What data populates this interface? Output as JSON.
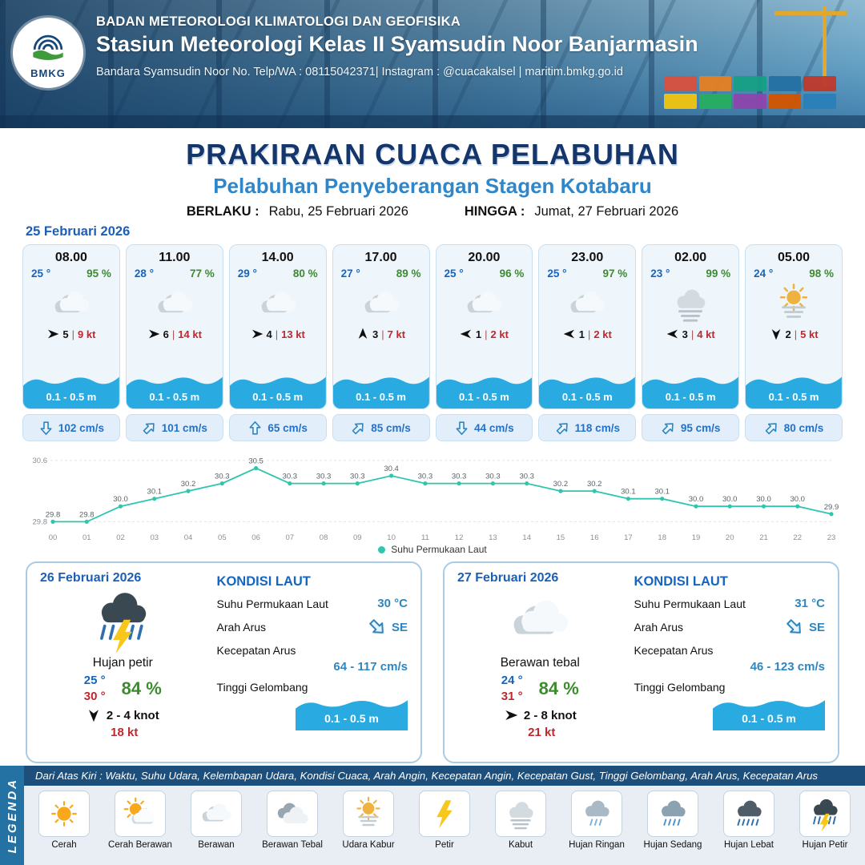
{
  "header": {
    "logo_text": "BMKG",
    "org": "BADAN METEOROLOGI KLIMATOLOGI DAN GEOFISIKA",
    "station": "Stasiun Meteorologi Kelas II Syamsudin Noor Banjarmasin",
    "contact": "Bandara Syamsudin Noor No. Telp/WA : 08115042371| Instagram : @cuacakalsel | maritim.bmkg.go.id"
  },
  "title": {
    "main": "PRAKIRAAN CUACA PELABUHAN",
    "subtitle": "Pelabuhan Penyeberangan Stagen Kotabaru",
    "berlaku_label": "BERLAKU :",
    "berlaku_value": "Rabu, 25 Februari 2026",
    "hingga_label": "HINGGA :",
    "hingga_value": "Jumat, 27 Februari 2026"
  },
  "colors": {
    "temp_blue": "#1565c0",
    "humidity_green": "#3d8b2f",
    "gust_red": "#c1272d",
    "wave_blue": "#29abe2",
    "title_navy": "#14366b",
    "subtitle_blue": "#2f86c8"
  },
  "forecast": {
    "date": "25 Februari 2026",
    "cards": [
      {
        "time": "08.00",
        "temp": "25 °",
        "humidity": "95 %",
        "weather_icon": "berawan",
        "wind_direction": "E",
        "wind_speed": "5",
        "wind_gust": "9 kt",
        "wave_height": "0.1 - 0.5 m",
        "current_direction": "S",
        "current_speed": "102 cm/s"
      },
      {
        "time": "11.00",
        "temp": "28 °",
        "humidity": "77 %",
        "weather_icon": "berawan",
        "wind_direction": "E",
        "wind_speed": "6",
        "wind_gust": "14 kt",
        "wave_height": "0.1 - 0.5 m",
        "current_direction": "NE",
        "current_speed": "101 cm/s"
      },
      {
        "time": "14.00",
        "temp": "29 °",
        "humidity": "80 %",
        "weather_icon": "berawan",
        "wind_direction": "E",
        "wind_speed": "4",
        "wind_gust": "13 kt",
        "wave_height": "0.1 - 0.5 m",
        "current_direction": "N",
        "current_speed": "65 cm/s"
      },
      {
        "time": "17.00",
        "temp": "27 °",
        "humidity": "89 %",
        "weather_icon": "berawan",
        "wind_direction": "N",
        "wind_speed": "3",
        "wind_gust": "7 kt",
        "wave_height": "0.1 - 0.5 m",
        "current_direction": "NE",
        "current_speed": "85 cm/s"
      },
      {
        "time": "20.00",
        "temp": "25 °",
        "humidity": "96 %",
        "weather_icon": "berawan",
        "wind_direction": "W",
        "wind_speed": "1",
        "wind_gust": "2 kt",
        "wave_height": "0.1 - 0.5 m",
        "current_direction": "S",
        "current_speed": "44 cm/s"
      },
      {
        "time": "23.00",
        "temp": "25 °",
        "humidity": "97 %",
        "weather_icon": "berawan",
        "wind_direction": "W",
        "wind_speed": "1",
        "wind_gust": "2 kt",
        "wave_height": "0.1 - 0.5 m",
        "current_direction": "NE",
        "current_speed": "118 cm/s"
      },
      {
        "time": "02.00",
        "temp": "23 °",
        "humidity": "99 %",
        "weather_icon": "kabut",
        "wind_direction": "W",
        "wind_speed": "3",
        "wind_gust": "4 kt",
        "wave_height": "0.1 - 0.5 m",
        "current_direction": "NE",
        "current_speed": "95 cm/s"
      },
      {
        "time": "05.00",
        "temp": "24 °",
        "humidity": "98 %",
        "weather_icon": "udara_kabur",
        "wind_direction": "S",
        "wind_speed": "2",
        "wind_gust": "5 kt",
        "wave_height": "0.1 - 0.5 m",
        "current_direction": "NE",
        "current_speed": "80 cm/s"
      }
    ]
  },
  "chart_data": {
    "type": "line",
    "series_name": "Suhu Permukaan Laut",
    "x": [
      "00",
      "01",
      "02",
      "03",
      "04",
      "05",
      "06",
      "07",
      "08",
      "09",
      "10",
      "11",
      "12",
      "13",
      "14",
      "15",
      "16",
      "17",
      "18",
      "19",
      "20",
      "21",
      "22",
      "23"
    ],
    "values": [
      29.8,
      29.8,
      30.0,
      30.1,
      30.2,
      30.3,
      30.5,
      30.3,
      30.3,
      30.3,
      30.4,
      30.3,
      30.3,
      30.3,
      30.3,
      30.2,
      30.2,
      30.1,
      30.1,
      30.0,
      30.0,
      30.0,
      30.0,
      29.9
    ],
    "ylim": [
      29.8,
      30.6
    ],
    "line_color": "#2fc5ae",
    "legend_position": "bottom",
    "grid": "dotted-top-bottom"
  },
  "day_cards": [
    {
      "date": "26 Februari 2026",
      "weather_icon": "hujan_petir",
      "weather_label": "Hujan petir",
      "temp_min": "25 °",
      "temp_max": "30 °",
      "humidity": "84 %",
      "wind_direction": "S",
      "wind_range": "2  - 4 knot",
      "wind_gust": "18 kt",
      "sea": {
        "title": "KONDISI LAUT",
        "sst_label": "Suhu Permukaan Laut",
        "sst_value": "30 °C",
        "current_dir_label": "Arah Arus",
        "current_dir_value": "SE",
        "current_dir": "SE",
        "current_speed_label": "Kecepatan Arus",
        "current_speed_value": "64  - 117 cm/s",
        "wave_label": "Tinggi Gelombang",
        "wave_value": "0.1 - 0.5 m"
      }
    },
    {
      "date": "27 Februari 2026",
      "weather_icon": "berawan",
      "weather_label": "Berawan tebal",
      "temp_min": "24 °",
      "temp_max": "31 °",
      "humidity": "84 %",
      "wind_direction": "E",
      "wind_range": "2  - 8 knot",
      "wind_gust": "21 kt",
      "sea": {
        "title": "KONDISI LAUT",
        "sst_label": "Suhu Permukaan Laut",
        "sst_value": "31 °C",
        "current_dir_label": "Arah Arus",
        "current_dir_value": "SE",
        "current_dir": "SE",
        "current_speed_label": "Kecepatan Arus",
        "current_speed_value": "46  - 123 cm/s",
        "wave_label": "Tinggi Gelombang",
        "wave_value": "0.1 - 0.5 m"
      }
    }
  ],
  "legend": {
    "vertical_label": "LEGENDA",
    "description": "Dari Atas Kiri : Waktu, Suhu Udara, Kelembapan Udara, Kondisi Cuaca, Arah Angin, Kecepatan Angin, Kecepatan Gust, Tinggi Gelombang, Arah Arus, Kecepatan Arus",
    "items": [
      {
        "label": "Cerah",
        "icon": "cerah"
      },
      {
        "label": "Cerah Berawan",
        "icon": "cerah_berawan"
      },
      {
        "label": "Berawan",
        "icon": "berawan"
      },
      {
        "label": "Berawan Tebal",
        "icon": "berawan_tebal"
      },
      {
        "label": "Udara Kabur",
        "icon": "udara_kabur"
      },
      {
        "label": "Petir",
        "icon": "petir"
      },
      {
        "label": "Kabut",
        "icon": "kabut"
      },
      {
        "label": "Hujan Ringan",
        "icon": "hujan_ringan"
      },
      {
        "label": "Hujan Sedang",
        "icon": "hujan_sedang"
      },
      {
        "label": "Hujan Lebat",
        "icon": "hujan_lebat"
      },
      {
        "label": "Hujan Petir",
        "icon": "hujan_petir"
      }
    ]
  }
}
